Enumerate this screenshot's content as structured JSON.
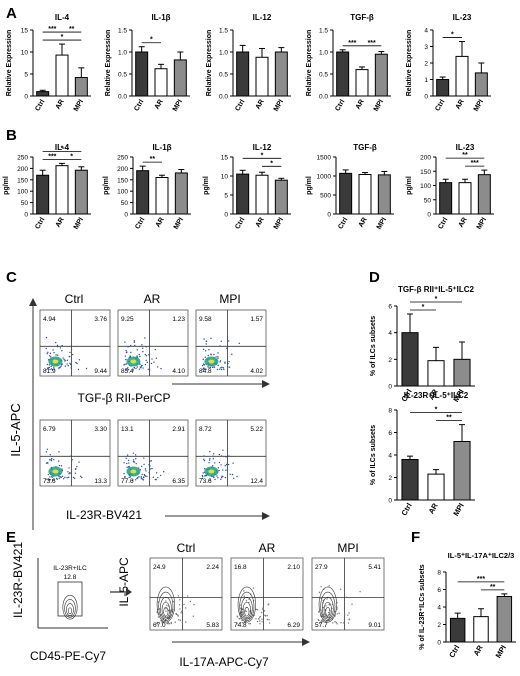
{
  "colors": {
    "ctrl": "#3a3a3a",
    "ar": "#ffffff",
    "mpi": "#8c8c8c",
    "bar_edge": "#000000",
    "axis": "#000000",
    "dot": "#2b4aa8",
    "density": "#1ea07a"
  },
  "panels": {
    "A": "A",
    "B": "B",
    "C": "C",
    "D": "D",
    "E": "E",
    "F": "F"
  },
  "categories": [
    "Ctrl",
    "AR",
    "MPI"
  ],
  "row_a": {
    "ylabel": "Relative Expression",
    "charts": [
      {
        "title": "IL-4",
        "ticks": [
          "0",
          "5",
          "10",
          "15"
        ],
        "ylim": [
          0,
          15
        ],
        "values": [
          1.0,
          9.3,
          4.2
        ],
        "errors": [
          0.3,
          2.5,
          2.2
        ],
        "sig": [
          {
            "a": 0,
            "b": 2,
            "label": "*",
            "level": 0
          },
          {
            "a": 0,
            "b": 1,
            "label": "***",
            "level": 1
          },
          {
            "a": 1,
            "b": 2,
            "label": "**",
            "level": 1
          }
        ]
      },
      {
        "title": "IL-1β",
        "ticks": [
          "0.0",
          "0.5",
          "1.0",
          "1.5"
        ],
        "ylim": [
          0,
          1.5
        ],
        "values": [
          1.0,
          0.62,
          0.82
        ],
        "errors": [
          0.12,
          0.1,
          0.18
        ],
        "sig": [
          {
            "a": 0,
            "b": 1,
            "label": "*",
            "level": 0
          }
        ]
      },
      {
        "title": "IL-12",
        "ticks": [
          "0.0",
          "0.5",
          "1.0",
          "1.5"
        ],
        "ylim": [
          0,
          1.5
        ],
        "values": [
          1.0,
          0.88,
          1.0
        ],
        "errors": [
          0.15,
          0.2,
          0.1
        ],
        "sig": []
      },
      {
        "title": "TGF-β",
        "ticks": [
          "0.0",
          "0.5",
          "1.0",
          "1.5"
        ],
        "ylim": [
          0,
          1.5
        ],
        "values": [
          1.0,
          0.6,
          0.95
        ],
        "errors": [
          0.05,
          0.06,
          0.06
        ],
        "sig": [
          {
            "a": 0,
            "b": 1,
            "label": "***",
            "level": 0
          },
          {
            "a": 1,
            "b": 2,
            "label": "***",
            "level": 0
          }
        ]
      },
      {
        "title": "IL-23",
        "ticks": [
          "0",
          "1",
          "2",
          "3",
          "4"
        ],
        "ylim": [
          0,
          4
        ],
        "values": [
          1.0,
          2.4,
          1.4
        ],
        "errors": [
          0.15,
          0.9,
          0.6
        ],
        "sig": [
          {
            "a": 0,
            "b": 1,
            "label": "*",
            "level": 0
          }
        ]
      }
    ]
  },
  "row_b": {
    "ylabel": "pg/ml",
    "charts": [
      {
        "title": "IL-4",
        "ticks": [
          "0",
          "50",
          "100",
          "150",
          "200",
          "250"
        ],
        "ylim": [
          0,
          250
        ],
        "values": [
          170,
          212,
          192
        ],
        "errors": [
          22,
          10,
          15
        ],
        "sig": [
          {
            "a": 0,
            "b": 1,
            "label": "***",
            "level": 0
          },
          {
            "a": 1,
            "b": 2,
            "label": "*",
            "level": 0
          },
          {
            "a": 0,
            "b": 2,
            "label": "*",
            "level": 1
          }
        ]
      },
      {
        "title": "IL-1β",
        "ticks": [
          "0",
          "50",
          "100",
          "150",
          "200",
          "250"
        ],
        "ylim": [
          0,
          250
        ],
        "values": [
          190,
          160,
          180
        ],
        "errors": [
          20,
          10,
          15
        ],
        "sig": [
          {
            "a": 0,
            "b": 1,
            "label": "**",
            "level": 0
          }
        ]
      },
      {
        "title": "IL-12",
        "ticks": [
          "0",
          "5",
          "10",
          "15"
        ],
        "ylim": [
          0,
          15
        ],
        "values": [
          10.5,
          10.2,
          8.9
        ],
        "errors": [
          1.0,
          0.8,
          0.5
        ],
        "sig": [
          {
            "a": 1,
            "b": 2,
            "label": "*",
            "level": 0
          },
          {
            "a": 0,
            "b": 2,
            "label": "*",
            "level": 1
          }
        ]
      },
      {
        "title": "TGF-β",
        "ticks": [
          "0",
          "500",
          "1000",
          "1500"
        ],
        "ylim": [
          0,
          1500
        ],
        "values": [
          1070,
          1040,
          1030
        ],
        "errors": [
          90,
          50,
          90
        ],
        "sig": []
      },
      {
        "title": "IL-23",
        "ticks": [
          "0",
          "50",
          "100",
          "150",
          "200"
        ],
        "ylim": [
          0,
          200
        ],
        "values": [
          110,
          110,
          138
        ],
        "errors": [
          12,
          12,
          16
        ],
        "sig": [
          {
            "a": 1,
            "b": 2,
            "label": "***",
            "level": 0
          },
          {
            "a": 0,
            "b": 2,
            "label": "**",
            "level": 1
          }
        ]
      }
    ]
  },
  "panel_c": {
    "columns": [
      "Ctrl",
      "AR",
      "MPI"
    ],
    "top_plots": [
      {
        "tl": "4.94",
        "tr": "3.76",
        "bl": "81.9",
        "br": "9.44"
      },
      {
        "tl": "9.25",
        "tr": "1.23",
        "bl": "85.4",
        "br": "4.10"
      },
      {
        "tl": "9.58",
        "tr": "1.57",
        "bl": "84.8",
        "br": "4.02"
      }
    ],
    "bottom_plots": [
      {
        "tl": "6.79",
        "tr": "3.30",
        "bl": "73.6",
        "br": "13.3"
      },
      {
        "tl": "13.1",
        "tr": "2.91",
        "bl": "77.6",
        "br": "6.35"
      },
      {
        "tl": "8.72",
        "tr": "5.22",
        "bl": "73.6",
        "br": "12.4"
      }
    ],
    "ylabel": "IL-5-APC",
    "xlabel_top": "TGF-β RII-PerCP",
    "xlabel_bottom": "IL-23R-BV421"
  },
  "panel_d": {
    "ylabel": "% of ILCs subsets",
    "charts": [
      {
        "title": "TGF-β RII⁺IL-5⁺ILC2",
        "ticks": [
          "0",
          "2",
          "4",
          "6"
        ],
        "ylim": [
          0,
          6
        ],
        "values": [
          4.0,
          1.9,
          2.0
        ],
        "errors": [
          1.4,
          1.0,
          1.3
        ],
        "sig": [
          {
            "a": 0,
            "b": 1,
            "label": "*",
            "level": 0
          },
          {
            "a": 0,
            "b": 2,
            "label": "*",
            "level": 1
          }
        ]
      },
      {
        "title": "IL-23R⁺IL-5⁺ILC2",
        "ticks": [
          "0",
          "2",
          "4",
          "6",
          "8"
        ],
        "ylim": [
          0,
          8
        ],
        "values": [
          3.6,
          2.3,
          5.2
        ],
        "errors": [
          0.3,
          0.4,
          1.5
        ],
        "sig": [
          {
            "a": 1,
            "b": 2,
            "label": "**",
            "level": 0
          },
          {
            "a": 0,
            "b": 2,
            "label": "*",
            "level": 1
          }
        ]
      }
    ]
  },
  "panel_e": {
    "gate_ylabel": "IL-23R-BV421",
    "gate_xlabel": "CD45-PE-Cy7",
    "gate_label": "IL-23R+ILC",
    "gate_value": "12.8",
    "columns": [
      "Ctrl",
      "AR",
      "MPI"
    ],
    "plots": [
      {
        "tl": "24.9",
        "tr": "2.24",
        "bl": "67.0",
        "br": "5.83"
      },
      {
        "tl": "16.8",
        "tr": "2.10",
        "bl": "74.8",
        "br": "6.29"
      },
      {
        "tl": "27.9",
        "tr": "5.41",
        "bl": "57.7",
        "br": "9.01"
      }
    ],
    "ylabel": "IL-5-APC",
    "xlabel": "IL-17A-APC-Cy7"
  },
  "panel_f": {
    "title": "IL-5⁺IL-17A⁺ILC2/3",
    "ylabel": "% of IL-23R⁺ILCs subsets",
    "ticks": [
      "0",
      "2",
      "4",
      "6",
      "8"
    ],
    "ylim": [
      0,
      8
    ],
    "values": [
      2.7,
      2.9,
      5.2
    ],
    "errors": [
      0.6,
      0.9,
      0.3
    ],
    "sig": [
      {
        "a": 1,
        "b": 2,
        "label": "**",
        "level": 0
      },
      {
        "a": 0,
        "b": 2,
        "label": "***",
        "level": 1
      }
    ]
  },
  "chart_data": [
    {
      "type": "bar",
      "title": "IL-4",
      "ylabel": "Relative Expression",
      "categories": [
        "Ctrl",
        "AR",
        "MPI"
      ],
      "values": [
        1.0,
        9.3,
        4.2
      ],
      "ylim": [
        0,
        15
      ]
    },
    {
      "type": "bar",
      "title": "IL-1β",
      "ylabel": "Relative Expression",
      "categories": [
        "Ctrl",
        "AR",
        "MPI"
      ],
      "values": [
        1.0,
        0.62,
        0.82
      ],
      "ylim": [
        0,
        1.5
      ]
    },
    {
      "type": "bar",
      "title": "IL-12",
      "ylabel": "Relative Expression",
      "categories": [
        "Ctrl",
        "AR",
        "MPI"
      ],
      "values": [
        1.0,
        0.88,
        1.0
      ],
      "ylim": [
        0,
        1.5
      ]
    },
    {
      "type": "bar",
      "title": "TGF-β",
      "ylabel": "Relative Expression",
      "categories": [
        "Ctrl",
        "AR",
        "MPI"
      ],
      "values": [
        1.0,
        0.6,
        0.95
      ],
      "ylim": [
        0,
        1.5
      ]
    },
    {
      "type": "bar",
      "title": "IL-23",
      "ylabel": "Relative Expression",
      "categories": [
        "Ctrl",
        "AR",
        "MPI"
      ],
      "values": [
        1.0,
        2.4,
        1.4
      ],
      "ylim": [
        0,
        4
      ]
    },
    {
      "type": "bar",
      "title": "IL-4",
      "ylabel": "pg/ml",
      "categories": [
        "Ctrl",
        "AR",
        "MPI"
      ],
      "values": [
        170,
        212,
        192
      ],
      "ylim": [
        0,
        250
      ]
    },
    {
      "type": "bar",
      "title": "IL-1β",
      "ylabel": "pg/ml",
      "categories": [
        "Ctrl",
        "AR",
        "MPI"
      ],
      "values": [
        190,
        160,
        180
      ],
      "ylim": [
        0,
        250
      ]
    },
    {
      "type": "bar",
      "title": "IL-12",
      "ylabel": "pg/ml",
      "categories": [
        "Ctrl",
        "AR",
        "MPI"
      ],
      "values": [
        10.5,
        10.2,
        8.9
      ],
      "ylim": [
        0,
        15
      ]
    },
    {
      "type": "bar",
      "title": "TGF-β",
      "ylabel": "pg/ml",
      "categories": [
        "Ctrl",
        "AR",
        "MPI"
      ],
      "values": [
        1070,
        1040,
        1030
      ],
      "ylim": [
        0,
        1500
      ]
    },
    {
      "type": "bar",
      "title": "IL-23",
      "ylabel": "pg/ml",
      "categories": [
        "Ctrl",
        "AR",
        "MPI"
      ],
      "values": [
        110,
        110,
        138
      ],
      "ylim": [
        0,
        200
      ]
    },
    {
      "type": "bar",
      "title": "TGF-β RII⁺IL-5⁺ILC2",
      "ylabel": "% of ILCs subsets",
      "categories": [
        "Ctrl",
        "AR",
        "MPI"
      ],
      "values": [
        4.0,
        1.9,
        2.0
      ],
      "ylim": [
        0,
        6
      ]
    },
    {
      "type": "bar",
      "title": "IL-23R⁺IL-5⁺ILC2",
      "ylabel": "% of ILCs subsets",
      "categories": [
        "Ctrl",
        "AR",
        "MPI"
      ],
      "values": [
        3.6,
        2.3,
        5.2
      ],
      "ylim": [
        0,
        8
      ]
    },
    {
      "type": "bar",
      "title": "IL-5⁺IL-17A⁺ILC2/3",
      "ylabel": "% of IL-23R⁺ILCs subsets",
      "categories": [
        "Ctrl",
        "AR",
        "MPI"
      ],
      "values": [
        2.7,
        2.9,
        5.2
      ],
      "ylim": [
        0,
        8
      ]
    }
  ]
}
